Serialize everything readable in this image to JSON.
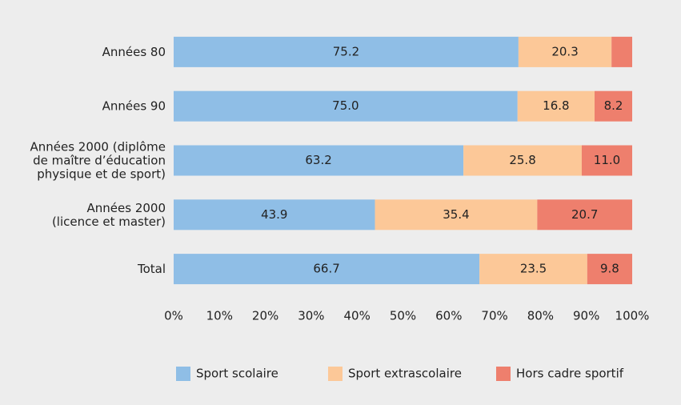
{
  "chart_data": {
    "type": "stacked-barh",
    "categories": [
      [
        "Années 80"
      ],
      [
        "Années 90"
      ],
      [
        "Années 2000 (diplôme",
        "de maître d’éducation",
        "physique et de sport)"
      ],
      [
        "Années 2000",
        "(licence et master)"
      ],
      [
        "Total"
      ]
    ],
    "series": [
      {
        "name": "Sport scolaire",
        "color": "#8fbee6",
        "values": [
          75.2,
          75,
          63.2,
          43.9,
          66.7
        ],
        "value_labels": [
          "75.2",
          "75.0",
          "63.2",
          "43.9",
          "66.7"
        ]
      },
      {
        "name": "Sport extrascolaire",
        "color": "#fcc898",
        "values": [
          20.3,
          16.8,
          25.8,
          35.4,
          23.5
        ],
        "value_labels": [
          "20.3",
          "16.8",
          "25.8",
          "35.4",
          "23.5"
        ]
      },
      {
        "name": "Hors cadre sportif",
        "color": "#ee7f6d",
        "values": [
          4.5,
          8.2,
          11,
          20.7,
          9.8
        ],
        "value_labels": [
          null,
          "8.2",
          "11.0",
          "20.7",
          "9.8"
        ]
      }
    ],
    "xlim": [
      0,
      100
    ],
    "xticks": [
      {
        "value": 0,
        "label": "0%"
      },
      {
        "value": 10,
        "label": "10%"
      },
      {
        "value": 20,
        "label": "20%"
      },
      {
        "value": 30,
        "label": "30%"
      },
      {
        "value": 40,
        "label": "40%"
      },
      {
        "value": 50,
        "label": "50%"
      },
      {
        "value": 60,
        "label": "60%"
      },
      {
        "value": 70,
        "label": "70%"
      },
      {
        "value": 80,
        "label": "80%"
      },
      {
        "value": 90,
        "label": "90%"
      },
      {
        "value": 100,
        "label": "100%"
      }
    ],
    "grid": false,
    "legend": "bottom"
  }
}
